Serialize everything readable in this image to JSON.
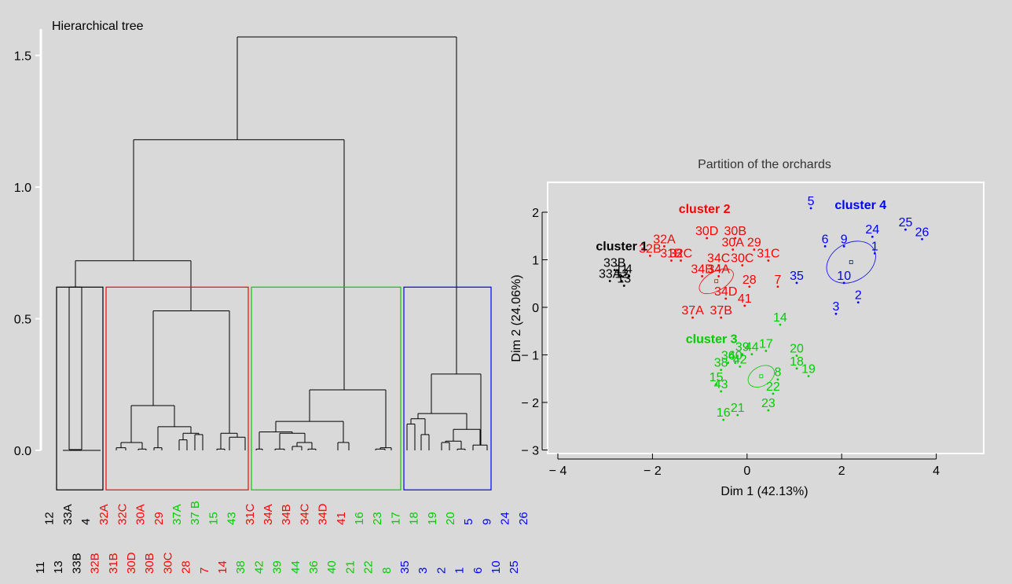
{
  "chart_data": [
    {
      "type": "dendrogram",
      "title": "Hierarchical tree",
      "ylim": [
        0,
        1.6
      ],
      "yticks": [
        0.0,
        0.5,
        1.0,
        1.5
      ],
      "ytick_labels": [
        "0.0",
        "0.5",
        "1.0",
        "1.5"
      ],
      "leaf_order": [
        "11",
        "12",
        "13",
        "33A",
        "33B",
        "4",
        "32B",
        "32A",
        "31B",
        "32C",
        "30D",
        "30A",
        "30B",
        "29",
        "30C",
        "37A",
        "28",
        "37 B",
        "7",
        "15",
        "14",
        "43",
        "38",
        "31C",
        "42",
        "34A",
        "39",
        "34B",
        "44",
        "34C",
        "36",
        "34D",
        "40",
        "41",
        "21",
        "16",
        "22",
        "23",
        "8",
        "17",
        "35",
        "18",
        "3",
        "19",
        "2",
        "20",
        "1",
        "5",
        "6",
        "9",
        "10",
        "24",
        "25",
        "26"
      ],
      "leaf_colors": [
        "black",
        "black",
        "black",
        "black",
        "black",
        "black",
        "red",
        "red",
        "red",
        "red",
        "red",
        "red",
        "red",
        "red",
        "red",
        "green",
        "red",
        "green",
        "red",
        "green",
        "red",
        "green",
        "green",
        "red",
        "green",
        "red",
        "green",
        "red",
        "green",
        "red",
        "green",
        "red",
        "green",
        "red",
        "green",
        "green",
        "green",
        "green",
        "green",
        "green",
        "blue",
        "green",
        "blue",
        "green",
        "blue",
        "green",
        "blue",
        "blue",
        "blue",
        "blue",
        "blue",
        "blue",
        "blue",
        "blue"
      ],
      "merge_heights": {
        "root": 1.57,
        "left": 1.18,
        "middle": 0.72,
        "cluster2": 0.53,
        "cluster3": 0.23,
        "cluster4": 0.29
      },
      "clusters": [
        {
          "name": "1",
          "color": "#000000",
          "box_height": 0.62
        },
        {
          "name": "2",
          "color": "#ff0000",
          "box_height": 0.62
        },
        {
          "name": "3",
          "color": "#00cc00",
          "box_height": 0.62
        },
        {
          "name": "4",
          "color": "#0000ff",
          "box_height": 0.62
        }
      ]
    },
    {
      "type": "scatter",
      "title": "Partition of the orchards",
      "xlabel": "Dim 1 (42.13%)",
      "ylabel": "Dim 2 (24.06%)",
      "xlim": [
        -4.3,
        4.9
      ],
      "ylim": [
        -3.1,
        2.6
      ],
      "xticks": [
        -4,
        -2,
        0,
        2,
        4
      ],
      "xtick_labels": [
        "− 4",
        "− 2",
        "0",
        "2",
        "4"
      ],
      "yticks": [
        -3,
        -2,
        -1,
        0,
        1,
        2
      ],
      "ytick_labels": [
        "− 3",
        "− 2",
        "− 1",
        "0",
        "1",
        "2"
      ],
      "clusters": [
        {
          "name": "cluster 1",
          "color": "#000000",
          "label_at": [
            -2.65,
            1.2
          ],
          "center": [
            -2.7,
            0.7
          ],
          "points": [
            {
              "label": "33B",
              "x": -2.8,
              "y": 0.85
            },
            {
              "label": "11",
              "x": -2.65,
              "y": 0.72
            },
            {
              "label": "12",
              "x": -2.65,
              "y": 0.62
            },
            {
              "label": "4",
              "x": -2.5,
              "y": 0.72
            },
            {
              "label": "33A",
              "x": -2.9,
              "y": 0.62
            },
            {
              "label": "13",
              "x": -2.6,
              "y": 0.52
            }
          ]
        },
        {
          "name": "cluster 2",
          "color": "#ff0000",
          "label_at": [
            -0.9,
            1.98
          ],
          "center": [
            -0.65,
            0.55
          ],
          "ellipse": {
            "rx": 0.4,
            "ry": 0.2
          },
          "points": [
            {
              "label": "32A",
              "x": -1.75,
              "y": 1.35
            },
            {
              "label": "32B",
              "x": -2.05,
              "y": 1.15
            },
            {
              "label": "31B",
              "x": -1.6,
              "y": 1.05
            },
            {
              "label": "32C",
              "x": -1.4,
              "y": 1.05
            },
            {
              "label": "30D",
              "x": -0.85,
              "y": 1.52
            },
            {
              "label": "30B",
              "x": -0.25,
              "y": 1.52
            },
            {
              "label": "30A",
              "x": -0.3,
              "y": 1.28
            },
            {
              "label": "29",
              "x": 0.15,
              "y": 1.28
            },
            {
              "label": "31C",
              "x": 0.45,
              "y": 1.05
            },
            {
              "label": "34C",
              "x": -0.6,
              "y": 0.95
            },
            {
              "label": "30C",
              "x": -0.1,
              "y": 0.95
            },
            {
              "label": "34B",
              "x": -0.95,
              "y": 0.72
            },
            {
              "label": "34A",
              "x": -0.6,
              "y": 0.72
            },
            {
              "label": "28",
              "x": 0.05,
              "y": 0.5
            },
            {
              "label": "7",
              "x": 0.65,
              "y": 0.5
            },
            {
              "label": "34D",
              "x": -0.45,
              "y": 0.25
            },
            {
              "label": "41",
              "x": -0.05,
              "y": 0.1
            },
            {
              "label": "37A",
              "x": -1.15,
              "y": -0.15
            },
            {
              "label": "37B",
              "x": -0.55,
              "y": -0.15
            }
          ]
        },
        {
          "name": "cluster 3",
          "color": "#00cc00",
          "label_at": [
            -0.75,
            -0.75
          ],
          "center": [
            0.3,
            -1.45
          ],
          "ellipse": {
            "rx": 0.3,
            "ry": 0.2
          },
          "points": [
            {
              "label": "14",
              "x": 0.7,
              "y": -0.3
            },
            {
              "label": "39",
              "x": -0.1,
              "y": -0.92
            },
            {
              "label": "44",
              "x": 0.1,
              "y": -0.92
            },
            {
              "label": "17",
              "x": 0.4,
              "y": -0.85
            },
            {
              "label": "20",
              "x": 1.05,
              "y": -0.95
            },
            {
              "label": "36",
              "x": -0.4,
              "y": -1.1
            },
            {
              "label": "40",
              "x": -0.25,
              "y": -1.1
            },
            {
              "label": "42",
              "x": -0.15,
              "y": -1.18
            },
            {
              "label": "38",
              "x": -0.55,
              "y": -1.25
            },
            {
              "label": "18",
              "x": 1.05,
              "y": -1.22
            },
            {
              "label": "19",
              "x": 1.3,
              "y": -1.38
            },
            {
              "label": "8",
              "x": 0.65,
              "y": -1.45
            },
            {
              "label": "15",
              "x": -0.65,
              "y": -1.55
            },
            {
              "label": "43",
              "x": -0.55,
              "y": -1.7
            },
            {
              "label": "22",
              "x": 0.55,
              "y": -1.75
            },
            {
              "label": "23",
              "x": 0.45,
              "y": -2.1
            },
            {
              "label": "21",
              "x": -0.2,
              "y": -2.2
            },
            {
              "label": "16",
              "x": -0.5,
              "y": -2.3
            }
          ]
        },
        {
          "name": "cluster 4",
          "color": "#0000ff",
          "label_at": [
            2.4,
            2.07
          ],
          "center": [
            2.2,
            0.95
          ],
          "ellipse": {
            "rx": 0.55,
            "ry": 0.4
          },
          "points": [
            {
              "label": "5",
              "x": 1.35,
              "y": 2.15
            },
            {
              "label": "25",
              "x": 3.35,
              "y": 1.7
            },
            {
              "label": "26",
              "x": 3.7,
              "y": 1.5
            },
            {
              "label": "24",
              "x": 2.65,
              "y": 1.55
            },
            {
              "label": "6",
              "x": 1.65,
              "y": 1.35
            },
            {
              "label": "9",
              "x": 2.05,
              "y": 1.35
            },
            {
              "label": "1",
              "x": 2.7,
              "y": 1.2
            },
            {
              "label": "10",
              "x": 2.05,
              "y": 0.58
            },
            {
              "label": "35",
              "x": 1.05,
              "y": 0.58
            },
            {
              "label": "2",
              "x": 2.35,
              "y": 0.17
            },
            {
              "label": "3",
              "x": 1.88,
              "y": -0.07
            }
          ]
        }
      ]
    }
  ]
}
